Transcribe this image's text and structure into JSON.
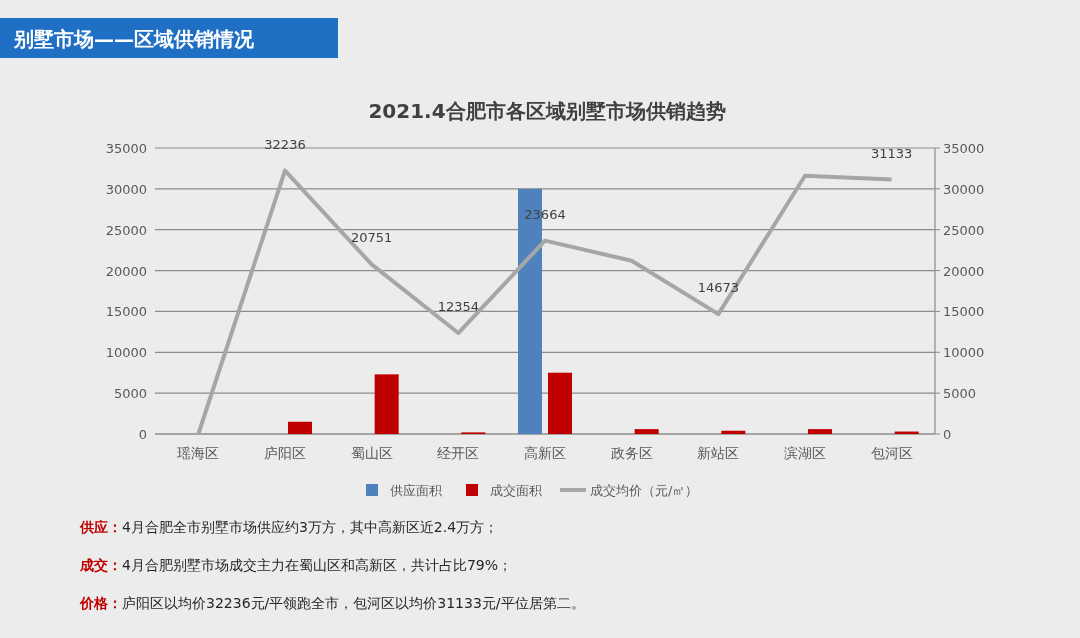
{
  "chart_data": {
    "type": "bar",
    "title": "2021.4合肥市各区域别墅市场供销趋势",
    "subtitle": "别墅市场——区域供销情况",
    "categories": [
      "瑶海区",
      "庐阳区",
      "蜀山区",
      "经开区",
      "高新区",
      "政务区",
      "新站区",
      "滨湖区",
      "包河区"
    ],
    "series": [
      {
        "name": "供应面积",
        "color": "#4f81bd",
        "values": [
          0,
          0,
          0,
          0,
          30000,
          0,
          0,
          0,
          0
        ]
      },
      {
        "name": "成交面积",
        "color": "#c00000",
        "values": [
          0,
          1500,
          7300,
          200,
          7500,
          600,
          400,
          600,
          300
        ]
      },
      {
        "name": "成交均价（元/㎡）",
        "type": "line",
        "axis": "y2",
        "color": "#a6a6a6",
        "values": [
          0,
          32236,
          20751,
          12354,
          23664,
          21200,
          14673,
          31600,
          31133
        ],
        "value_labels": [
          null,
          "32236",
          "20751",
          "12354",
          "23664",
          null,
          "14673",
          null,
          "31133"
        ]
      }
    ],
    "ylim": [
      0,
      35000
    ],
    "yticks": [
      0,
      5000,
      10000,
      15000,
      20000,
      25000,
      30000,
      35000
    ],
    "y2lim": [
      0,
      35000
    ],
    "y2ticks": [
      0,
      5000,
      10000,
      15000,
      20000,
      25000,
      30000,
      35000
    ],
    "grid": "y",
    "legend": "bottom",
    "marker": "none",
    "annotations": [
      "供应：4月合肥全市别墅市场供应约3万方，其中高新区近2.4万方；",
      "成交：4月合肥别墅市场成交主力在蜀山区和高新区，共计占比79%；",
      "价格：庐阳区以均价32236元/平领跑全市，包河区以均价31133元/平位居第二。"
    ]
  }
}
